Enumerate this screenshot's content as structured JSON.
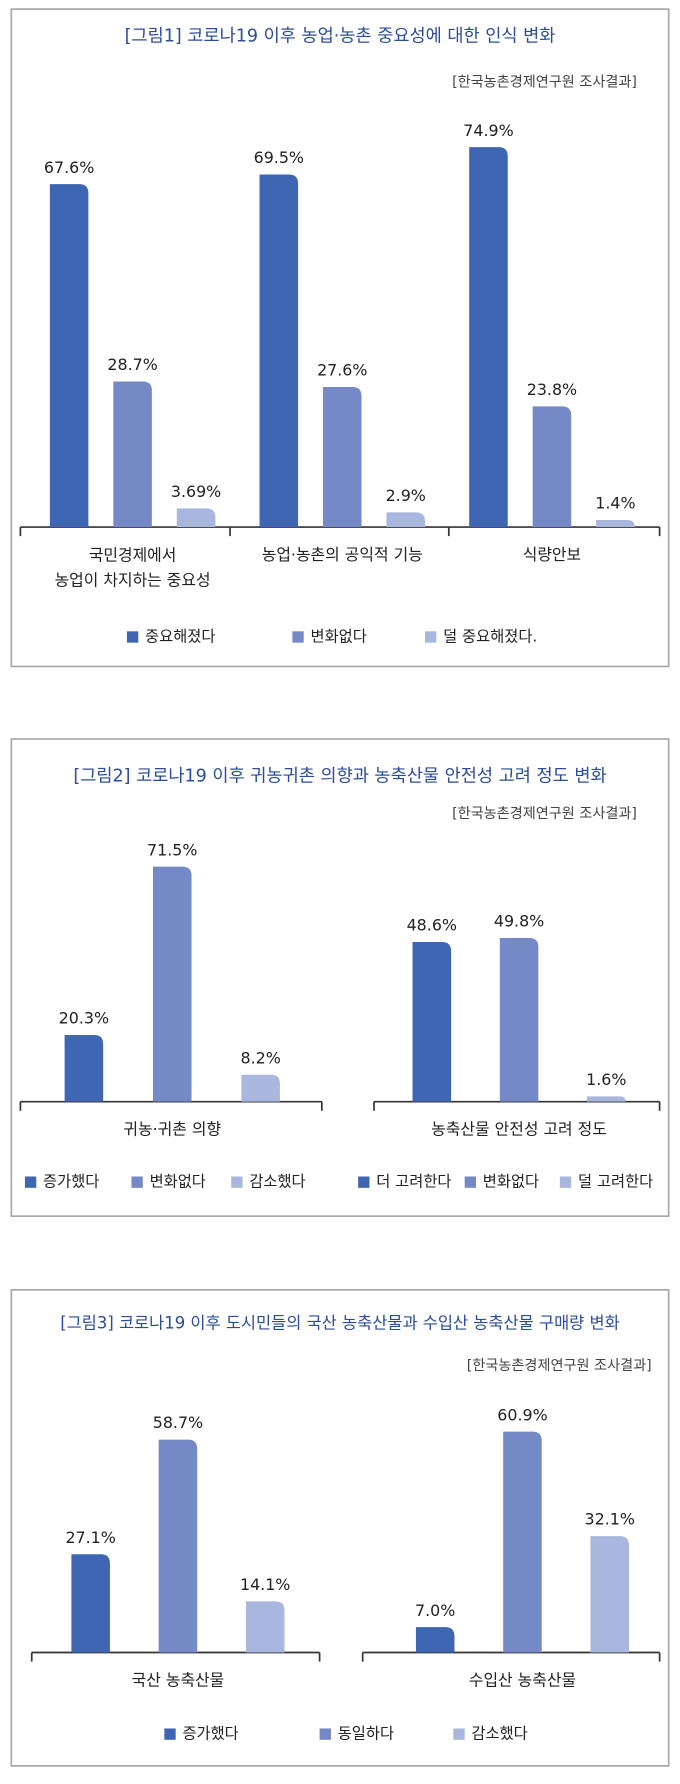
{
  "chart_data": [
    {
      "type": "bar",
      "title": "[그림1] 코로나19 이후 농업·농촌 중요성에 대한 인식 변화",
      "subtitle": "[한국농촌경제연구원 조사결과]",
      "ylim": [
        0,
        80
      ],
      "categories": [
        "국민경제에서\n농업이 차지하는 중요성",
        "농업·농촌의 공익적 기능",
        "식량안보"
      ],
      "series": [
        {
          "name": "중요해졌다",
          "color": "#3f66b2",
          "values": [
            67.6,
            69.5,
            74.9
          ],
          "value_labels": [
            "67.6%",
            "69.5%",
            "74.9%"
          ]
        },
        {
          "name": "변화없다",
          "color": "#7589c6",
          "values": [
            28.7,
            27.6,
            23.8
          ],
          "value_labels": [
            "28.7%",
            "27.6%",
            "23.8%"
          ]
        },
        {
          "name": "덜 중요해졌다.",
          "color": "#a9b6de",
          "values": [
            3.69,
            2.9,
            1.4
          ],
          "value_labels": [
            "3.69%",
            "2.9%",
            "1.4%"
          ]
        }
      ]
    },
    {
      "type": "bar",
      "title": "[그림2] 코로나19 이후 귀농귀촌 의향과 농축산물 안전성 고려 정도 변화",
      "subtitle": "[한국농촌경제연구원 조사결과]",
      "ylim": [
        0,
        80
      ],
      "panels": [
        {
          "categories": [
            "귀농·귀촌 의향"
          ],
          "series": [
            {
              "name": "증가했다",
              "color": "#3f66b2",
              "values": [
                20.3
              ],
              "value_labels": [
                "20.3%"
              ]
            },
            {
              "name": "변화없다",
              "color": "#7589c6",
              "values": [
                71.5
              ],
              "value_labels": [
                "71.5%"
              ]
            },
            {
              "name": "감소했다",
              "color": "#a9b6de",
              "values": [
                8.2
              ],
              "value_labels": [
                "8.2%"
              ]
            }
          ]
        },
        {
          "categories": [
            "농축산물 안전성 고려 정도"
          ],
          "series": [
            {
              "name": "더 고려한다",
              "color": "#3f66b2",
              "values": [
                48.6
              ],
              "value_labels": [
                "48.6%"
              ]
            },
            {
              "name": "변화없다",
              "color": "#7589c6",
              "values": [
                49.8
              ],
              "value_labels": [
                "49.8%"
              ]
            },
            {
              "name": "덜 고려한다",
              "color": "#a9b6de",
              "values": [
                1.6
              ],
              "value_labels": [
                "1.6%"
              ]
            }
          ]
        }
      ]
    },
    {
      "type": "bar",
      "title": "[그림3] 코로나19 이후 도시민들의 국산 농축산물과 수입산 농축산물 구매량 변화",
      "subtitle": "[한국농촌경제연구원 조사결과]",
      "ylim": [
        0,
        70
      ],
      "categories": [
        "국산 농축산물",
        "수입산 농축산물"
      ],
      "series": [
        {
          "name": "증가했다",
          "color": "#3f66b2",
          "values": [
            27.1,
            7.0
          ],
          "value_labels": [
            "27.1%",
            "7.0%"
          ]
        },
        {
          "name": "동일하다",
          "color": "#7589c6",
          "values": [
            58.7,
            60.9
          ],
          "value_labels": [
            "58.7%",
            "60.9%"
          ]
        },
        {
          "name": "감소했다",
          "color": "#a9b6de",
          "values": [
            14.1,
            32.1
          ],
          "value_labels": [
            "14.1%",
            "32.1%"
          ]
        }
      ]
    }
  ]
}
